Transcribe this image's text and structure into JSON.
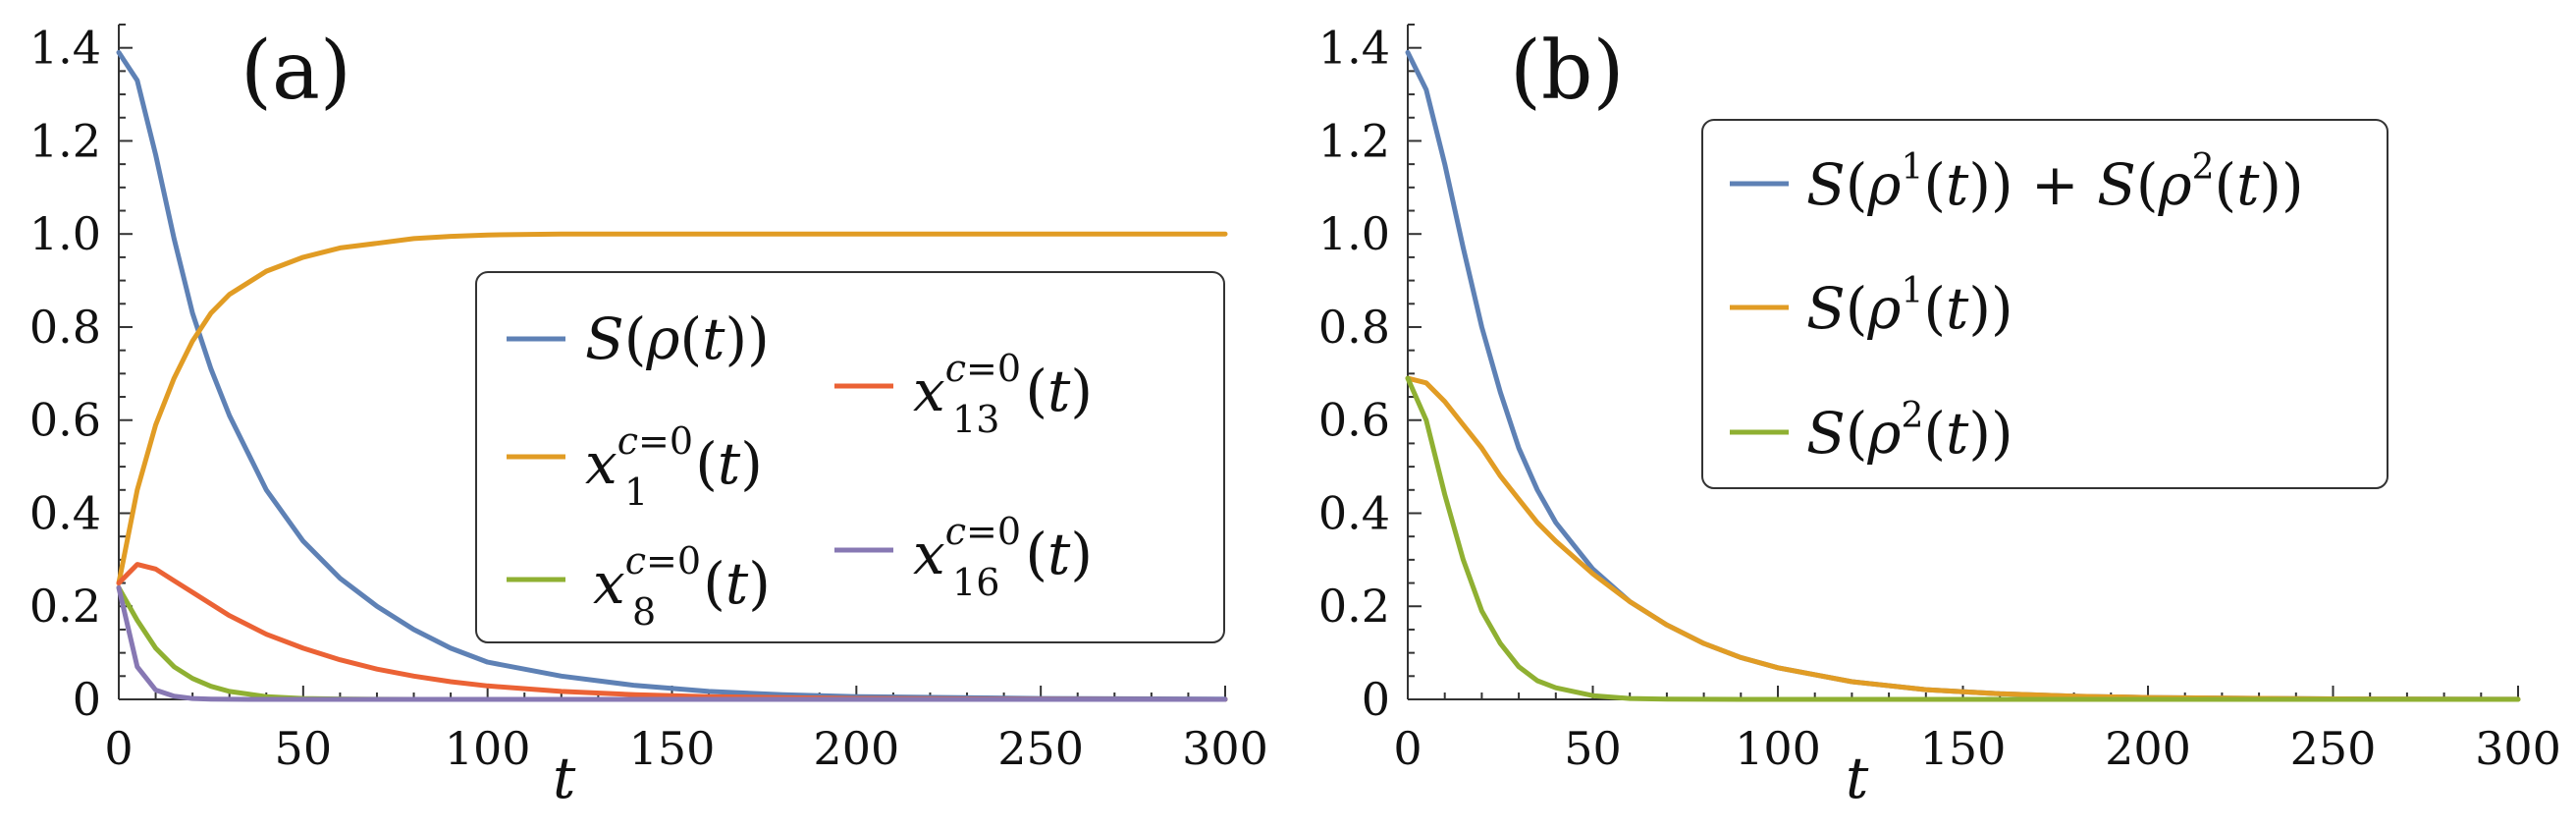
{
  "chart_data": [
    {
      "type": "line",
      "panel_label": "(a)",
      "xlabel": "t",
      "xlim": [
        0,
        300
      ],
      "ylim": [
        0,
        1.45
      ],
      "x_ticks": [
        "0",
        "50",
        "100",
        "150",
        "200",
        "250",
        "300"
      ],
      "y_ticks": [
        "0",
        "0.2",
        "0.4",
        "0.6",
        "0.8",
        "1.0",
        "1.2",
        "1.4"
      ],
      "legend_position": "center-right",
      "x": [
        0,
        5,
        10,
        15,
        20,
        25,
        30,
        40,
        50,
        60,
        70,
        80,
        90,
        100,
        120,
        140,
        160,
        180,
        200,
        250,
        300
      ],
      "series": [
        {
          "name": "S(ρ(t))",
          "color": "#5e81b5",
          "values": [
            1.39,
            1.33,
            1.17,
            0.99,
            0.83,
            0.71,
            0.61,
            0.45,
            0.34,
            0.26,
            0.2,
            0.15,
            0.11,
            0.08,
            0.05,
            0.03,
            0.017,
            0.01,
            0.006,
            0.002,
            0.0005
          ]
        },
        {
          "name": "x_1^{c=0}(t)",
          "color": "#e19c24",
          "values": [
            0.25,
            0.45,
            0.59,
            0.69,
            0.77,
            0.83,
            0.87,
            0.92,
            0.95,
            0.97,
            0.98,
            0.99,
            0.995,
            0.998,
            1.0,
            1.0,
            1.0,
            1.0,
            1.0,
            1.0,
            1.0
          ]
        },
        {
          "name": "x_8^{c=0}(t)",
          "color": "#8fb032",
          "values": [
            0.24,
            0.17,
            0.11,
            0.07,
            0.045,
            0.028,
            0.017,
            0.006,
            0.002,
            0.0008,
            0.0003,
            0.0001,
            0,
            0,
            0,
            0,
            0,
            0,
            0,
            0,
            0
          ]
        },
        {
          "name": "x_13^{c=0}(t)",
          "color": "#eb6235",
          "values": [
            0.25,
            0.29,
            0.28,
            0.255,
            0.23,
            0.205,
            0.18,
            0.14,
            0.11,
            0.085,
            0.065,
            0.05,
            0.038,
            0.029,
            0.017,
            0.01,
            0.006,
            0.0035,
            0.002,
            0.0005,
            0.0001
          ]
        },
        {
          "name": "x_16^{c=0}(t)",
          "color": "#8778b3",
          "values": [
            0.24,
            0.07,
            0.02,
            0.007,
            0.002,
            0.0007,
            0.0002,
            0,
            0,
            0,
            0,
            0,
            0,
            0,
            0,
            0,
            0,
            0,
            0,
            0,
            0
          ]
        }
      ]
    },
    {
      "type": "line",
      "panel_label": "(b)",
      "xlabel": "t",
      "xlim": [
        0,
        300
      ],
      "ylim": [
        0,
        1.45
      ],
      "x_ticks": [
        "0",
        "50",
        "100",
        "150",
        "200",
        "250",
        "300"
      ],
      "y_ticks": [
        "0",
        "0.2",
        "0.4",
        "0.6",
        "0.8",
        "1.0",
        "1.2",
        "1.4"
      ],
      "legend_position": "top-right",
      "x": [
        0,
        5,
        10,
        15,
        20,
        25,
        30,
        35,
        40,
        50,
        60,
        70,
        80,
        90,
        100,
        120,
        140,
        160,
        180,
        200,
        250,
        300
      ],
      "series": [
        {
          "name": "S(ρ¹(t)) + S(ρ²(t))",
          "color": "#5e81b5",
          "values": [
            1.39,
            1.31,
            1.15,
            0.97,
            0.8,
            0.66,
            0.54,
            0.45,
            0.38,
            0.28,
            0.21,
            0.16,
            0.12,
            0.09,
            0.068,
            0.038,
            0.021,
            0.012,
            0.007,
            0.004,
            0.001,
            0.0002
          ]
        },
        {
          "name": "S(ρ¹(t))",
          "color": "#e19c24",
          "values": [
            0.69,
            0.68,
            0.64,
            0.59,
            0.54,
            0.48,
            0.43,
            0.38,
            0.34,
            0.27,
            0.21,
            0.16,
            0.12,
            0.09,
            0.068,
            0.038,
            0.021,
            0.012,
            0.007,
            0.004,
            0.001,
            0.0002
          ]
        },
        {
          "name": "S(ρ²(t))",
          "color": "#8fb032",
          "values": [
            0.69,
            0.6,
            0.44,
            0.3,
            0.19,
            0.12,
            0.07,
            0.04,
            0.025,
            0.008,
            0.002,
            0.0007,
            0.0002,
            0,
            0,
            0,
            0,
            0,
            0,
            0,
            0,
            0
          ]
        }
      ]
    }
  ]
}
